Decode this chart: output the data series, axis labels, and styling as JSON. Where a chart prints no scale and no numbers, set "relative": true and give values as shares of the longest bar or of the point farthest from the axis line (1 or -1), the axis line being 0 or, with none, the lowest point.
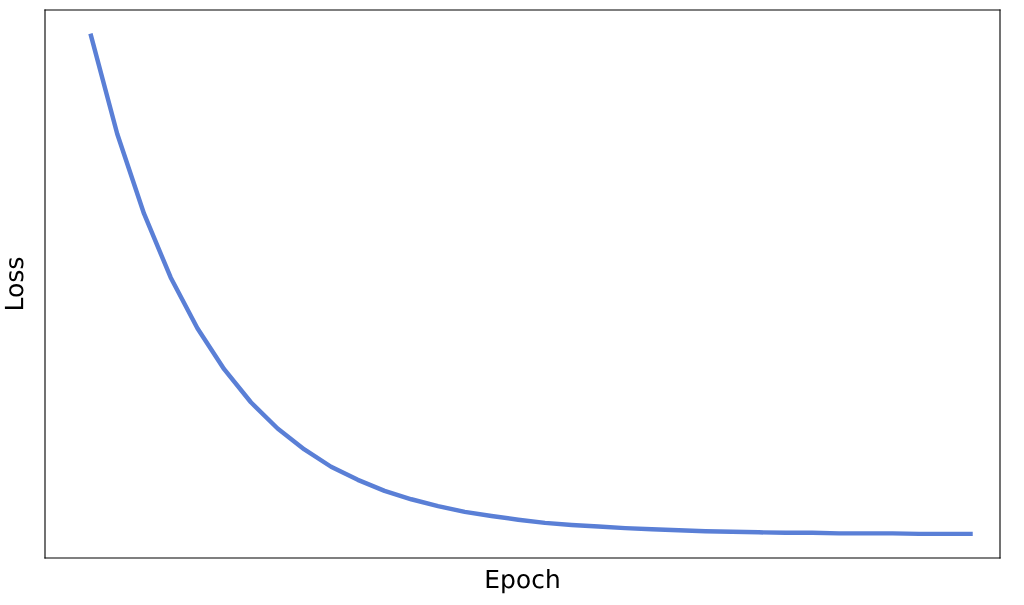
{
  "chart_data": {
    "type": "line",
    "relative": true,
    "xlabel": "Epoch",
    "ylabel": "Loss",
    "categories": [
      null,
      null,
      null,
      null,
      null,
      null,
      null,
      null,
      null,
      null,
      null,
      null,
      null,
      null,
      null,
      null,
      null,
      null,
      null,
      null,
      null,
      null,
      null,
      null,
      null,
      null,
      null,
      null,
      null,
      null,
      null,
      null,
      null,
      null
    ],
    "series": [
      {
        "color": "#5a7fd6",
        "values": [
          1.0,
          0.809,
          0.657,
          0.535,
          0.438,
          0.36,
          0.297,
          0.247,
          0.207,
          0.174,
          0.149,
          0.128,
          0.112,
          0.099,
          0.088,
          0.08,
          0.073,
          0.067,
          0.063,
          0.06,
          0.057,
          0.055,
          0.053,
          0.051,
          0.05,
          0.049,
          0.048,
          0.048,
          0.047,
          0.047,
          0.047,
          0.046,
          0.046,
          0.046
        ]
      }
    ],
    "grid": false,
    "legend": false,
    "tick_labels": false
  }
}
